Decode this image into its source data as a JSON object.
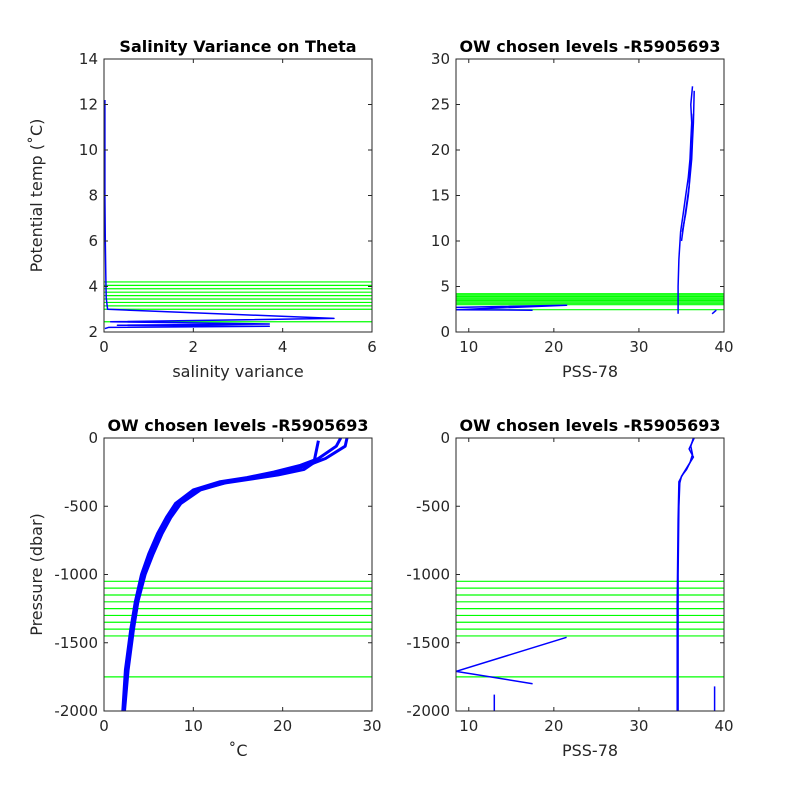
{
  "chart_data": [
    {
      "id": "p1",
      "type": "line",
      "title": "Salinity Variance on Theta",
      "xlabel": "salinity variance",
      "ylabel": "Potential temp (˚C)",
      "xlim": [
        0,
        6
      ],
      "ylim": [
        2,
        14
      ],
      "xticks": [
        "0",
        "2",
        "4",
        "6"
      ],
      "yticks": [
        "2",
        "4",
        "6",
        "8",
        "10",
        "12",
        "14"
      ],
      "grid": false,
      "profile_color": "#0000ff",
      "level_color": "#00ff00",
      "series": [
        {
          "x": [
            0.02,
            0.02,
            0.03,
            0.04,
            0.05,
            0.08,
            5.15,
            0.15,
            3.7,
            0.3,
            3.7,
            0.1,
            0.02
          ],
          "y": [
            12.2,
            8,
            6,
            4.5,
            3.5,
            3.0,
            2.6,
            2.45,
            2.35,
            2.3,
            2.25,
            2.2,
            2.15
          ]
        }
      ],
      "levels": [
        2.45,
        3.0,
        3.15,
        3.3,
        3.45,
        3.6,
        3.75,
        3.9,
        4.05,
        4.2
      ]
    },
    {
      "id": "p2",
      "type": "line",
      "title": "OW chosen levels -R5905693",
      "xlabel": "PSS-78",
      "ylabel": "",
      "xlim": [
        8.5,
        40
      ],
      "ylim": [
        0,
        30
      ],
      "xticks": [
        "10",
        "20",
        "30",
        "40"
      ],
      "yticks": [
        "0",
        "5",
        "10",
        "15",
        "20",
        "25",
        "30"
      ],
      "grid": false,
      "profile_color": "#0000ff",
      "level_color": "#00ff00",
      "series": [
        {
          "x": [
            34.6,
            34.6,
            34.7,
            34.9,
            35.2,
            35.5,
            35.8,
            36.0,
            36.1,
            36.2,
            36.1,
            36.3
          ],
          "y": [
            2.0,
            5,
            8,
            11,
            13,
            15,
            17,
            19,
            21,
            23,
            25,
            27
          ]
        },
        {
          "x": [
            35.1,
            35.5,
            35.8,
            36.0,
            36.2,
            36.3,
            36.4,
            36.5
          ],
          "y": [
            11,
            13,
            15,
            17,
            19,
            21,
            23,
            26.5
          ]
        },
        {
          "x": [
            35.0,
            35.3,
            35.6,
            35.9,
            36.0,
            36.2,
            36.3,
            36.4
          ],
          "y": [
            10,
            12,
            14,
            16,
            18,
            20,
            22,
            24
          ]
        },
        {
          "x": [
            8.5,
            21.5,
            8.5,
            17.5
          ],
          "y": [
            2.7,
            2.95,
            2.45,
            2.4
          ]
        },
        {
          "x": [
            38.6,
            39.1
          ],
          "y": [
            2.0,
            2.4
          ]
        }
      ],
      "levels": [
        2.45,
        3.0,
        3.15,
        3.3,
        3.45,
        3.6,
        3.75,
        3.9,
        4.05,
        4.2
      ]
    },
    {
      "id": "p3",
      "type": "line",
      "title": "OW chosen levels -R5905693",
      "xlabel": "˚C",
      "ylabel": "Pressure (dbar)",
      "xlim": [
        0,
        30
      ],
      "ylim": [
        -2000,
        0
      ],
      "xticks": [
        "0",
        "10",
        "20",
        "30"
      ],
      "yticks": [
        "-2000",
        "-1500",
        "-1000",
        "-500",
        "0"
      ],
      "grid": false,
      "profile_color": "#0000ff",
      "level_color": "#00ff00",
      "series": [
        {
          "x": [
            2.1,
            2.4,
            3.0,
            3.5,
            4.2,
            5.0,
            6.0,
            7.0,
            8.0,
            10.0,
            13.0,
            16.0,
            19.0,
            22.0,
            24.0,
            26.0,
            26.5
          ],
          "y": [
            -2000,
            -1700,
            -1400,
            -1200,
            -1000,
            -850,
            -700,
            -580,
            -480,
            -380,
            -320,
            -290,
            -250,
            -200,
            -150,
            -60,
            0
          ]
        },
        {
          "x": [
            2.3,
            2.7,
            3.3,
            3.8,
            4.6,
            5.5,
            6.5,
            7.5,
            8.6,
            10.8,
            14.0,
            17.0,
            20.0,
            22.8,
            24.8,
            27.0,
            27.2
          ],
          "y": [
            -2000,
            -1700,
            -1400,
            -1200,
            -1000,
            -850,
            -700,
            -580,
            -480,
            -380,
            -320,
            -290,
            -250,
            -200,
            -150,
            -60,
            0
          ]
        },
        {
          "x": [
            2.2,
            2.5,
            3.1,
            3.6,
            4.4,
            5.2,
            6.2,
            7.2,
            8.3,
            10.4,
            13.5,
            16.5,
            19.5,
            22.4,
            23.5,
            24.0
          ],
          "y": [
            -2000,
            -1700,
            -1400,
            -1200,
            -1000,
            -850,
            -700,
            -580,
            -480,
            -380,
            -330,
            -300,
            -270,
            -230,
            -180,
            -20
          ]
        }
      ],
      "levels": [
        -1050,
        -1100,
        -1150,
        -1200,
        -1250,
        -1300,
        -1350,
        -1400,
        -1450,
        -1750
      ]
    },
    {
      "id": "p4",
      "type": "line",
      "title": "OW chosen levels -R5905693",
      "xlabel": "PSS-78",
      "ylabel": "",
      "xlim": [
        8.5,
        40
      ],
      "ylim": [
        -2000,
        0
      ],
      "xticks": [
        "10",
        "20",
        "30",
        "40"
      ],
      "yticks": [
        "-2000",
        "-1500",
        "-1000",
        "-500",
        "0"
      ],
      "grid": false,
      "profile_color": "#0000ff",
      "level_color": "#00ff00",
      "series": [
        {
          "x": [
            34.6,
            34.6,
            34.7,
            34.8,
            35.0,
            35.6,
            36.0,
            36.3,
            36.1,
            36.4
          ],
          "y": [
            -2000,
            -1000,
            -500,
            -330,
            -280,
            -230,
            -180,
            -120,
            -60,
            0
          ]
        },
        {
          "x": [
            34.5,
            34.5,
            34.6,
            34.7,
            35.2,
            35.8,
            36.4,
            35.9,
            36.5
          ],
          "y": [
            -2000,
            -1200,
            -600,
            -320,
            -260,
            -200,
            -140,
            -80,
            0
          ]
        },
        {
          "x": [
            21.5,
            8.5,
            17.5
          ],
          "y": [
            -1460,
            -1710,
            -1800
          ]
        },
        {
          "x": [
            13.0,
            13.0
          ],
          "y": [
            -2000,
            -1880
          ]
        },
        {
          "x": [
            38.9,
            38.9
          ],
          "y": [
            -2000,
            -1820
          ]
        }
      ],
      "levels": [
        -1050,
        -1100,
        -1150,
        -1200,
        -1250,
        -1300,
        -1350,
        -1400,
        -1450,
        -1750
      ]
    }
  ]
}
